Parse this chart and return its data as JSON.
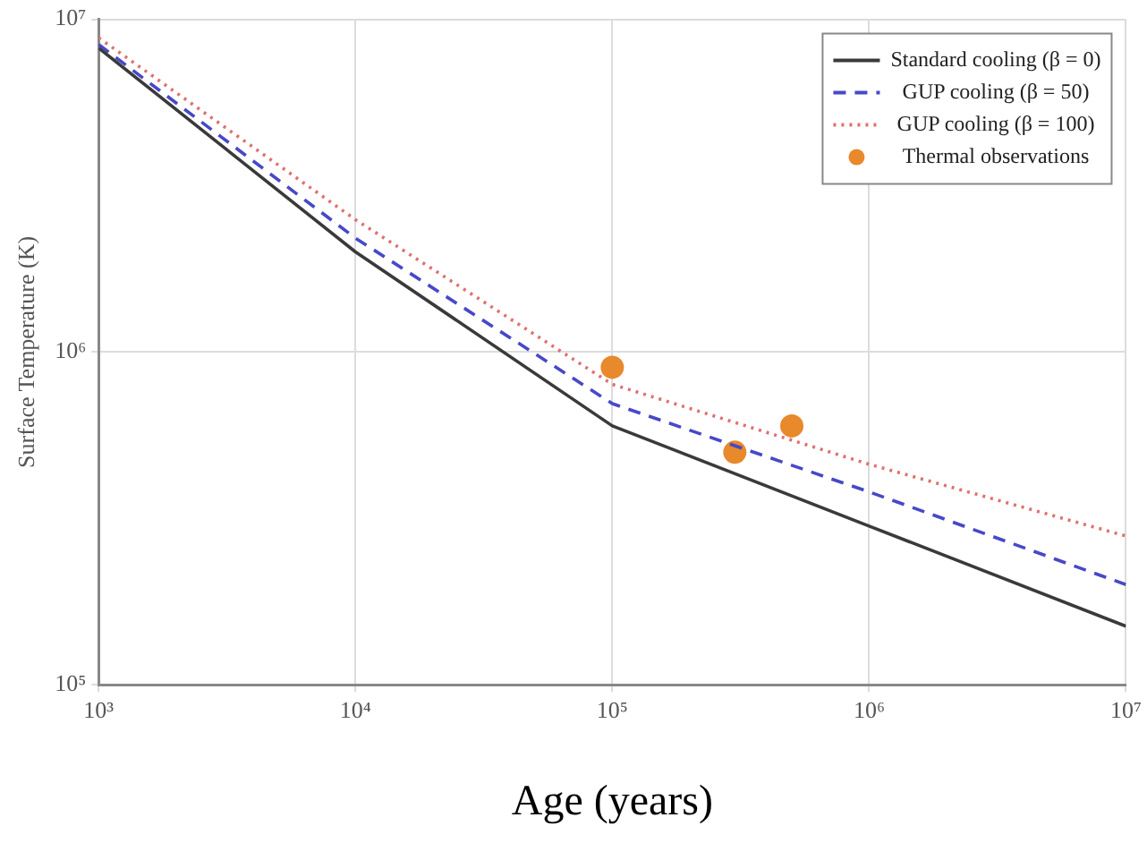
{
  "chart_data": {
    "type": "line",
    "xlabel": "Age (years)",
    "ylabel": "Surface Temperature (K)",
    "log": "xy",
    "grid": true,
    "legend": "top right",
    "xlim": [
      1000,
      10000000
    ],
    "ylim": [
      100000,
      10000000
    ],
    "xticks": [
      {
        "value": 1000,
        "label": "10³"
      },
      {
        "value": 10000,
        "label": "10⁴"
      },
      {
        "value": 100000,
        "label": "10⁵"
      },
      {
        "value": 1000000,
        "label": "10⁶"
      },
      {
        "value": 10000000,
        "label": "10⁷"
      }
    ],
    "yticks": [
      {
        "value": 100000,
        "label": "10⁵"
      },
      {
        "value": 1000000,
        "label": "10⁶"
      },
      {
        "value": 10000000,
        "label": "10⁷"
      }
    ],
    "series": [
      {
        "name": "Standard cooling (β = 0)",
        "color": "#3a3a3a",
        "line_style": "solid",
        "marker": "none",
        "x": [
          1000,
          10000,
          100000,
          1000000,
          10000000
        ],
        "values": [
          8200000,
          2000000,
          600000,
          300000,
          150000
        ]
      },
      {
        "name": "GUP cooling (β = 50)",
        "color": "#4848c8",
        "line_style": "dashed",
        "marker": "none",
        "x": [
          1000,
          10000,
          100000,
          1000000,
          10000000
        ],
        "values": [
          8400000,
          2200000,
          700000,
          380000,
          200000
        ]
      },
      {
        "name": "GUP cooling (β = 100)",
        "color": "#e07070",
        "line_style": "dotted",
        "marker": "none",
        "x": [
          1000,
          10000,
          100000,
          1000000,
          10000000
        ],
        "values": [
          8800000,
          2500000,
          800000,
          460000,
          280000
        ]
      },
      {
        "name": "Thermal observations",
        "type": "scatter",
        "color": "#e8892c",
        "marker": "circle",
        "x": [
          100000,
          300000,
          500000
        ],
        "values": [
          900000,
          500000,
          600000
        ]
      }
    ]
  }
}
